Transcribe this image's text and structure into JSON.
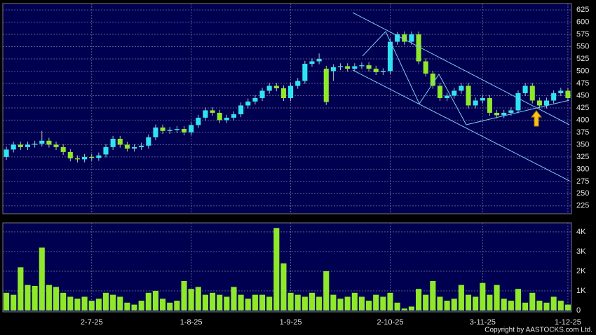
{
  "chart_data": {
    "type": "candlestick",
    "categories": [
      null,
      null,
      null,
      null,
      null,
      null,
      null,
      null,
      null,
      null,
      null,
      null,
      "2-7-25",
      null,
      null,
      null,
      null,
      null,
      null,
      null,
      null,
      null,
      null,
      null,
      null,
      null,
      "1-8-25",
      null,
      null,
      null,
      null,
      null,
      null,
      null,
      null,
      null,
      null,
      null,
      null,
      null,
      "1-9-25",
      null,
      null,
      null,
      null,
      null,
      null,
      null,
      null,
      null,
      null,
      null,
      null,
      null,
      "2-10-25",
      null,
      null,
      null,
      null,
      null,
      null,
      null,
      null,
      null,
      null,
      null,
      null,
      "3-11-25",
      null,
      null,
      null,
      null,
      null,
      null,
      null,
      null,
      null,
      null,
      null,
      "1-12-25"
    ],
    "open": [
      325,
      340,
      350,
      345,
      350,
      352,
      358,
      350,
      345,
      335,
      322,
      320,
      325,
      323,
      330,
      345,
      362,
      350,
      342,
      345,
      348,
      365,
      385,
      378,
      380,
      382,
      375,
      390,
      405,
      420,
      415,
      400,
      405,
      412,
      430,
      438,
      445,
      460,
      470,
      465,
      445,
      470,
      480,
      515,
      520,
      505,
      500,
      508,
      510,
      505,
      510,
      512,
      505,
      498,
      500,
      560,
      575,
      560,
      575,
      520,
      495,
      470,
      445,
      450,
      460,
      470,
      430,
      440,
      445,
      415,
      410,
      415,
      420,
      455,
      470,
      440,
      430,
      440,
      455,
      460
    ],
    "high": [
      346,
      356,
      356,
      356,
      358,
      378,
      364,
      356,
      351,
      341,
      328,
      331,
      331,
      334,
      351,
      368,
      368,
      356,
      351,
      354,
      371,
      391,
      391,
      386,
      388,
      388,
      396,
      411,
      426,
      426,
      421,
      411,
      418,
      436,
      444,
      451,
      466,
      476,
      476,
      471,
      476,
      486,
      521,
      526,
      536,
      511,
      514,
      516,
      516,
      516,
      518,
      518,
      511,
      506,
      566,
      580,
      581,
      581,
      581,
      526,
      501,
      476,
      456,
      466,
      476,
      476,
      446,
      451,
      451,
      421,
      421,
      426,
      461,
      476,
      476,
      446,
      446,
      461,
      466,
      466
    ],
    "low": [
      319,
      334,
      339,
      339,
      344,
      346,
      344,
      339,
      329,
      316,
      314,
      314,
      317,
      317,
      324,
      339,
      344,
      336,
      336,
      339,
      342,
      359,
      372,
      372,
      374,
      369,
      369,
      384,
      399,
      409,
      394,
      394,
      399,
      406,
      424,
      432,
      439,
      454,
      459,
      439,
      439,
      464,
      474,
      509,
      514,
      431,
      480,
      502,
      499,
      499,
      504,
      499,
      492,
      492,
      494,
      554,
      554,
      554,
      514,
      489,
      464,
      439,
      439,
      444,
      454,
      424,
      424,
      434,
      409,
      404,
      404,
      409,
      414,
      449,
      434,
      424,
      424,
      434,
      449,
      439
    ],
    "close": [
      340,
      350,
      345,
      350,
      352,
      358,
      350,
      345,
      335,
      322,
      320,
      325,
      323,
      328,
      345,
      362,
      350,
      342,
      345,
      348,
      365,
      385,
      378,
      380,
      382,
      375,
      390,
      405,
      420,
      415,
      400,
      405,
      412,
      430,
      438,
      445,
      460,
      470,
      465,
      445,
      470,
      480,
      515,
      520,
      525,
      437,
      508,
      510,
      505,
      510,
      512,
      505,
      498,
      500,
      560,
      575,
      560,
      575,
      520,
      495,
      470,
      445,
      450,
      460,
      470,
      430,
      440,
      445,
      415,
      410,
      415,
      420,
      455,
      470,
      440,
      430,
      440,
      455,
      460,
      445
    ],
    "volume": [
      900,
      800,
      2200,
      1300,
      1250,
      3200,
      1300,
      1200,
      900,
      700,
      600,
      700,
      500,
      600,
      900,
      800,
      700,
      400,
      300,
      500,
      900,
      1000,
      600,
      400,
      500,
      1500,
      1100,
      1200,
      800,
      900,
      800,
      700,
      1200,
      800,
      600,
      800,
      800,
      700,
      4200,
      2400,
      900,
      800,
      700,
      900,
      700,
      2000,
      800,
      600,
      700,
      900,
      700,
      500,
      800,
      700,
      900,
      400,
      100,
      200,
      1100,
      800,
      1500,
      700,
      500,
      600,
      1300,
      800,
      700,
      1400,
      800,
      1300,
      600,
      500,
      1100,
      400,
      900,
      500,
      400,
      700,
      500,
      300
    ],
    "up_color": "#2fe4f2",
    "down_color": "#8fe82a",
    "volume_color": "#8fe82a",
    "ylim": [
      209,
      638
    ],
    "yticks": [
      225,
      250,
      275,
      300,
      325,
      350,
      375,
      400,
      425,
      450,
      475,
      500,
      525,
      550,
      575,
      600,
      625
    ],
    "volume_ylim": [
      -70,
      4460
    ],
    "volume_yticks": [
      0,
      {
        "value": 1000,
        "label": "1K"
      },
      {
        "value": 2000,
        "label": "2K"
      },
      {
        "value": 3000,
        "label": "3K"
      },
      {
        "value": 4000,
        "label": "4K"
      }
    ],
    "grid": true,
    "annotation": "Copyright by AASTOCKS.com Ltd."
  }
}
